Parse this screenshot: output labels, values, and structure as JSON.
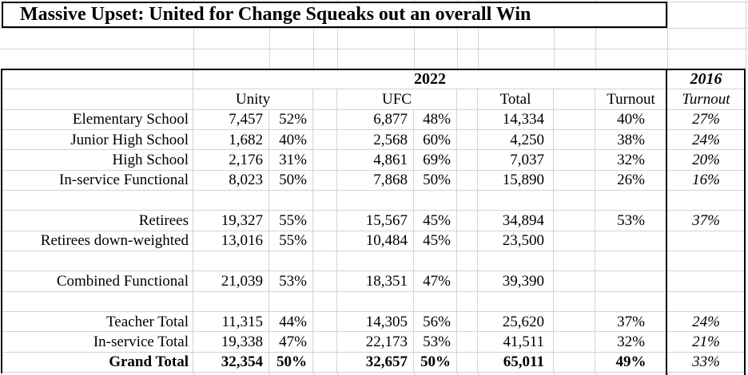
{
  "title": "Massive Upset: United for Change Squeaks out an overall Win",
  "sheet": {
    "year_left": "2022",
    "year_right": "2016",
    "columns": {
      "unity": "Unity",
      "ufc": "UFC",
      "total": "Total",
      "turnout": "Turnout",
      "turnout_right": "Turnout"
    },
    "rows": [
      {
        "label": "Elementary School",
        "unity": "7,457",
        "unity_pct": "52%",
        "ufc": "6,877",
        "ufc_pct": "48%",
        "total": "14,334",
        "turnout": "40%",
        "turnout_2016": "27%"
      },
      {
        "label": "Junior High School",
        "unity": "1,682",
        "unity_pct": "40%",
        "ufc": "2,568",
        "ufc_pct": "60%",
        "total": "4,250",
        "turnout": "38%",
        "turnout_2016": "24%"
      },
      {
        "label": "High School",
        "unity": "2,176",
        "unity_pct": "31%",
        "ufc": "4,861",
        "ufc_pct": "69%",
        "total": "7,037",
        "turnout": "32%",
        "turnout_2016": "20%"
      },
      {
        "label": "In-service Functional",
        "unity": "8,023",
        "unity_pct": "50%",
        "ufc": "7,868",
        "ufc_pct": "50%",
        "total": "15,890",
        "turnout": "26%",
        "turnout_2016": "16%"
      },
      {
        "blank": true,
        "label": "",
        "unity": "",
        "unity_pct": "",
        "ufc": "",
        "ufc_pct": "",
        "total": "",
        "turnout": "",
        "turnout_2016": ""
      },
      {
        "label": "Retirees",
        "unity": "19,327",
        "unity_pct": "55%",
        "ufc": "15,567",
        "ufc_pct": "45%",
        "total": "34,894",
        "turnout": "53%",
        "turnout_2016": "37%"
      },
      {
        "label": "Retirees down-weighted",
        "unity": "13,016",
        "unity_pct": "55%",
        "ufc": "10,484",
        "ufc_pct": "45%",
        "total": "23,500",
        "turnout": "",
        "turnout_2016": ""
      },
      {
        "blank": true,
        "label": "",
        "unity": "",
        "unity_pct": "",
        "ufc": "",
        "ufc_pct": "",
        "total": "",
        "turnout": "",
        "turnout_2016": ""
      },
      {
        "label": "Combined Functional",
        "unity": "21,039",
        "unity_pct": "53%",
        "ufc": "18,351",
        "ufc_pct": "47%",
        "total": "39,390",
        "turnout": "",
        "turnout_2016": ""
      },
      {
        "blank": true,
        "label": "",
        "unity": "",
        "unity_pct": "",
        "ufc": "",
        "ufc_pct": "",
        "total": "",
        "turnout": "",
        "turnout_2016": ""
      },
      {
        "label": "Teacher Total",
        "unity": "11,315",
        "unity_pct": "44%",
        "ufc": "14,305",
        "ufc_pct": "56%",
        "total": "25,620",
        "turnout": "37%",
        "turnout_2016": "24%"
      },
      {
        "label": "In-service Total",
        "unity": "19,338",
        "unity_pct": "47%",
        "ufc": "22,173",
        "ufc_pct": "53%",
        "total": "41,511",
        "turnout": "32%",
        "turnout_2016": "21%"
      },
      {
        "label": "Grand Total",
        "bold": true,
        "unity": "32,354",
        "unity_pct": "50%",
        "ufc": "32,657",
        "ufc_pct": "50%",
        "total": "65,011",
        "turnout": "49%",
        "turnout_2016": "33%"
      }
    ]
  },
  "colors": {
    "gridline": "#d3d3d3",
    "border": "#000000",
    "text": "#000000",
    "background": "#ffffff"
  }
}
